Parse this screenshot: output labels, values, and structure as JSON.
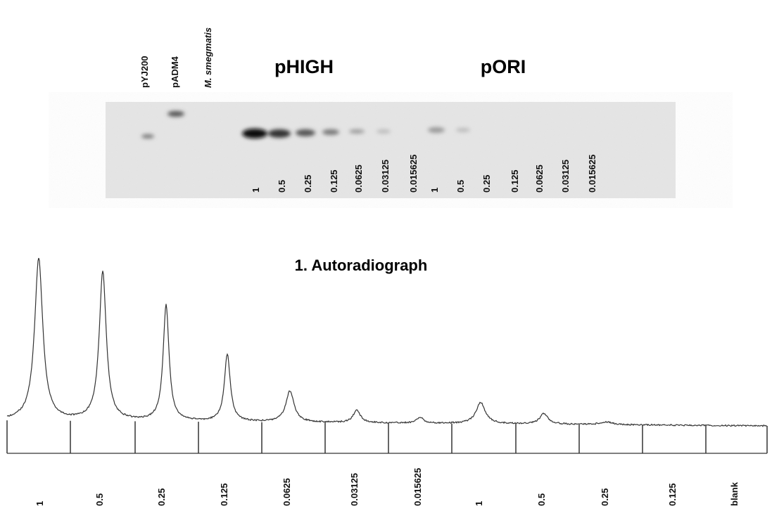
{
  "figure": {
    "lanes": [
      "pYJ200",
      "pADM4",
      "M. smegmatis"
    ],
    "groups": [
      "pHIGH",
      "pORI"
    ],
    "gel_labels": [
      "1",
      "0.5",
      "0.25",
      "0.125",
      "0.0625",
      "0.03125",
      "0.015625",
      "1",
      "0.5",
      "0.25",
      "0.125",
      "0.0625",
      "0.03125",
      "0.015625"
    ],
    "caption": "1. Autoradiograph",
    "trace_labels": [
      "1",
      "0.5",
      "0.25",
      "0.125",
      "0.0625",
      "0.03125",
      "0.015625",
      "1",
      "0.5",
      "0.25",
      "0.125",
      "blank"
    ]
  }
}
